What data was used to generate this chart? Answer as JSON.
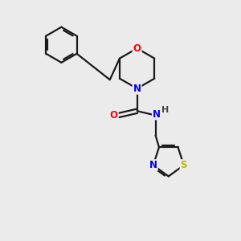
{
  "background_color": "#ebebeb",
  "bond_color": "#1a1a1a",
  "atom_colors": {
    "O": "#ff0000",
    "N": "#0000ee",
    "S": "#bbbb00",
    "H": "#444444"
  },
  "figsize": [
    3.0,
    3.0
  ],
  "dpi": 100
}
